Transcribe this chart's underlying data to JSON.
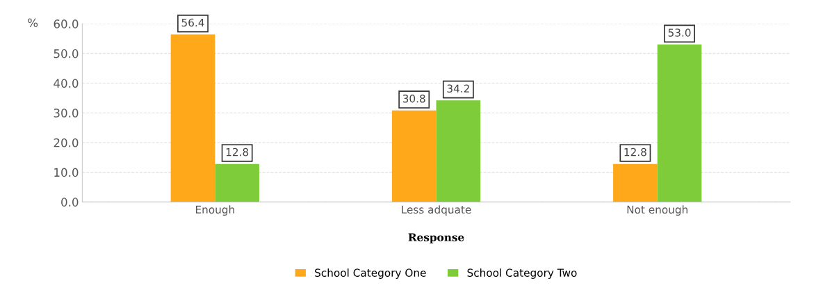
{
  "chart_data": {
    "type": "bar",
    "xlabel": "Response",
    "ylabel": "%",
    "categories": [
      "Enough",
      "Less adquate",
      "Not enough"
    ],
    "series": [
      {
        "name": "School Category One",
        "color": "#ffa81a",
        "values": [
          56.4,
          30.8,
          12.8
        ],
        "value_labels": [
          "56.4",
          "30.8",
          "12.8"
        ]
      },
      {
        "name": "School Category Two",
        "color": "#7fcc3a",
        "values": [
          12.8,
          34.2,
          53.0
        ],
        "value_labels": [
          "12.8",
          "34.2",
          "53.0"
        ]
      }
    ],
    "ylim": [
      0,
      60
    ],
    "yticks": [
      {
        "value": 0,
        "label": "0.0"
      },
      {
        "value": 10,
        "label": "10.0"
      },
      {
        "value": 20,
        "label": "20.0"
      },
      {
        "value": 30,
        "label": "30.0"
      },
      {
        "value": 40,
        "label": "40.0"
      },
      {
        "value": 50,
        "label": "50.0"
      },
      {
        "value": 60,
        "label": "60.0"
      }
    ],
    "grid": "y",
    "legend": "bottom"
  }
}
